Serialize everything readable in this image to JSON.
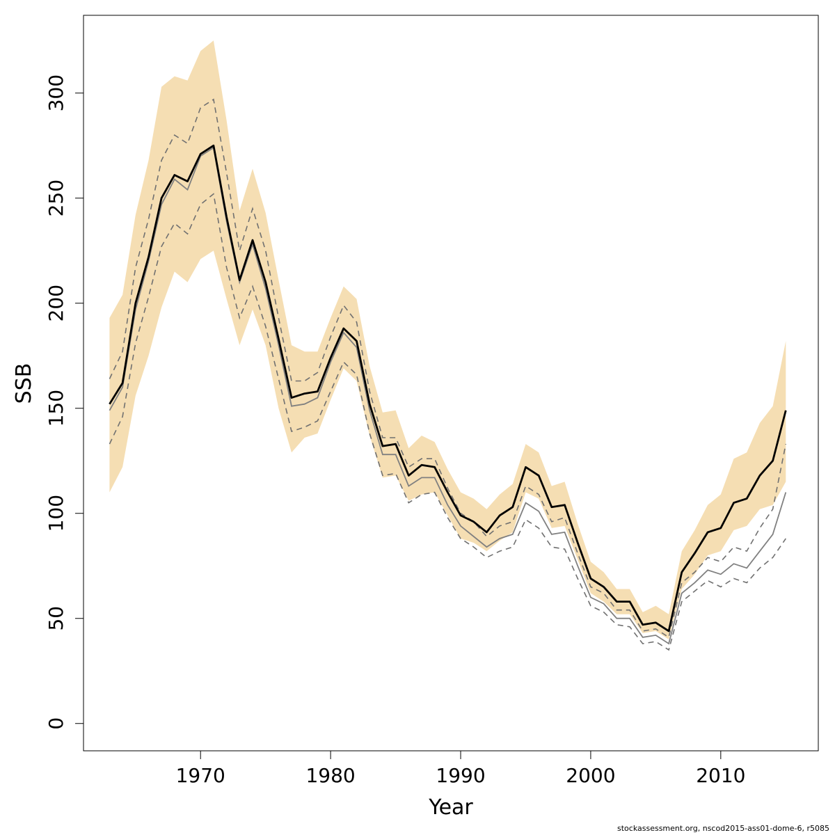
{
  "chart_data": {
    "type": "line",
    "xlabel": "Year",
    "ylabel": "SSB",
    "xlim": [
      1961,
      2017.5
    ],
    "ylim": [
      -13,
      337
    ],
    "x_ticks": [
      1970,
      1980,
      1990,
      2000,
      2010
    ],
    "y_ticks": [
      0,
      50,
      100,
      150,
      200,
      250,
      300
    ],
    "grid": false,
    "legend": "none",
    "colors": {
      "band": "#f5deb3",
      "main": "#000000",
      "retro": "#808080",
      "retro_ci": "#707070"
    },
    "x": [
      1963,
      1964,
      1965,
      1966,
      1967,
      1968,
      1969,
      1970,
      1971,
      1972,
      1973,
      1974,
      1975,
      1976,
      1977,
      1978,
      1979,
      1980,
      1981,
      1982,
      1983,
      1984,
      1985,
      1986,
      1987,
      1988,
      1989,
      1990,
      1991,
      1992,
      1993,
      1994,
      1995,
      1996,
      1997,
      1998,
      1999,
      2000,
      2001,
      2002,
      2003,
      2004,
      2005,
      2006,
      2007,
      2008,
      2009,
      2010,
      2011,
      2012,
      2013,
      2014,
      2015
    ],
    "series": [
      {
        "role": "estimate",
        "values": [
          152,
          162,
          200,
          222,
          250,
          261,
          258,
          271,
          275,
          241,
          211,
          230,
          210,
          183,
          155,
          157,
          158,
          174,
          188,
          182,
          152,
          132,
          133,
          118,
          123,
          122,
          110,
          99,
          96,
          91,
          99,
          103,
          122,
          118,
          103,
          104,
          86,
          69,
          65,
          58,
          58,
          47,
          48,
          44,
          72,
          81,
          91,
          93,
          105,
          107,
          118,
          125,
          149
        ]
      },
      {
        "role": "band-upper",
        "values": [
          193,
          204,
          242,
          268,
          303,
          308,
          306,
          320,
          325,
          287,
          244,
          264,
          243,
          211,
          180,
          177,
          177,
          193,
          208,
          202,
          170,
          148,
          149,
          131,
          137,
          134,
          121,
          110,
          107,
          102,
          109,
          114,
          133,
          129,
          113,
          115,
          95,
          77,
          72,
          64,
          64,
          53,
          56,
          52,
          82,
          92,
          104,
          109,
          126,
          129,
          143,
          151,
          182
        ]
      },
      {
        "role": "band-lower",
        "values": [
          110,
          122,
          156,
          175,
          198,
          215,
          210,
          221,
          225,
          202,
          180,
          197,
          180,
          150,
          129,
          136,
          138,
          154,
          169,
          163,
          137,
          117,
          118,
          106,
          109,
          110,
          99,
          88,
          86,
          82,
          87,
          91,
          110,
          107,
          93,
          94,
          78,
          62,
          58,
          52,
          52,
          43,
          44,
          40,
          64,
          71,
          80,
          82,
          92,
          94,
          102,
          104,
          115
        ]
      },
      {
        "role": "retro-estimate",
        "values": [
          149,
          160,
          197,
          220,
          247,
          259,
          254,
          270,
          274,
          239,
          210,
          228,
          207,
          180,
          151,
          152,
          155,
          172,
          186,
          179,
          149,
          128,
          128,
          113,
          117,
          117,
          104,
          94,
          89,
          84,
          88,
          90,
          105,
          101,
          90,
          91,
          75,
          60,
          57,
          50,
          50,
          41,
          42,
          38,
          62,
          67,
          73,
          71,
          76,
          74,
          82,
          90,
          110
        ]
      },
      {
        "role": "retro-ci-upper",
        "values": [
          164,
          177,
          217,
          240,
          268,
          280,
          276,
          293,
          297,
          262,
          225,
          245,
          225,
          193,
          163,
          163,
          167,
          184,
          199,
          191,
          158,
          136,
          136,
          122,
          126,
          126,
          112,
          100,
          96,
          89,
          94,
          96,
          113,
          109,
          96,
          98,
          81,
          65,
          62,
          54,
          54,
          44,
          45,
          41,
          67,
          72,
          79,
          77,
          84,
          82,
          93,
          102,
          133
        ]
      },
      {
        "role": "retro-ci-lower",
        "values": [
          133,
          146,
          181,
          203,
          227,
          238,
          233,
          247,
          252,
          217,
          193,
          208,
          189,
          164,
          139,
          141,
          144,
          158,
          172,
          166,
          138,
          118,
          119,
          105,
          109,
          110,
          98,
          88,
          84,
          79,
          82,
          84,
          97,
          93,
          84,
          83,
          69,
          56,
          53,
          47,
          46,
          38,
          39,
          35,
          58,
          63,
          68,
          65,
          69,
          67,
          74,
          79,
          88
        ]
      }
    ]
  },
  "footer": {
    "text": "stockassessment.org, nscod2015-ass01-dome-6, r5085"
  }
}
